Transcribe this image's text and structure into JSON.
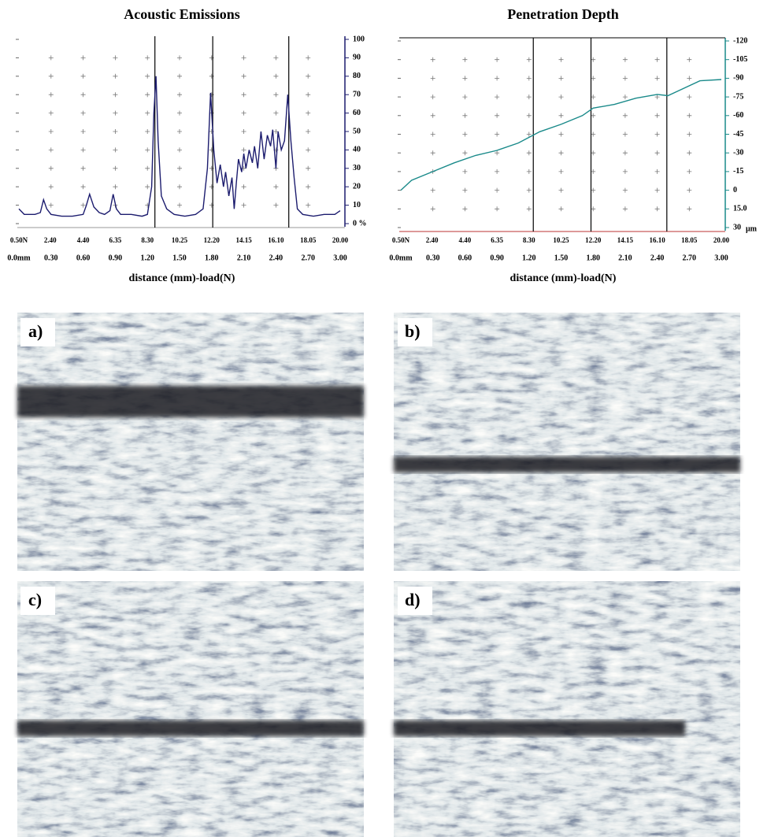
{
  "chart_data": [
    {
      "type": "line",
      "title": "Acoustic Emissions",
      "x_label": "distance (mm)-load(N)",
      "color": "#1c1c6e",
      "x": [
        0,
        0.05,
        0.15,
        0.2,
        0.23,
        0.26,
        0.3,
        0.4,
        0.5,
        0.6,
        0.63,
        0.66,
        0.7,
        0.75,
        0.8,
        0.85,
        0.88,
        0.91,
        0.95,
        1.05,
        1.15,
        1.2,
        1.24,
        1.26,
        1.28,
        1.3,
        1.33,
        1.38,
        1.45,
        1.55,
        1.65,
        1.72,
        1.76,
        1.79,
        1.82,
        1.85,
        1.88,
        1.91,
        1.93,
        1.96,
        1.99,
        2.01,
        2.03,
        2.05,
        2.08,
        2.1,
        2.12,
        2.15,
        2.18,
        2.2,
        2.23,
        2.26,
        2.29,
        2.32,
        2.35,
        2.37,
        2.4,
        2.42,
        2.45,
        2.48,
        2.51,
        2.54,
        2.57,
        2.6,
        2.65,
        2.75,
        2.85,
        2.95,
        3.0
      ],
      "values": [
        8,
        5,
        5,
        6,
        13,
        8,
        5,
        4,
        4,
        5,
        10,
        16,
        9,
        6,
        5,
        7,
        16,
        8,
        5,
        5,
        4,
        5,
        20,
        60,
        80,
        45,
        15,
        8,
        5,
        4,
        5,
        8,
        30,
        71,
        40,
        22,
        32,
        20,
        28,
        15,
        25,
        8,
        22,
        35,
        28,
        38,
        30,
        40,
        33,
        42,
        30,
        50,
        35,
        48,
        42,
        51,
        30,
        50,
        40,
        45,
        70,
        45,
        25,
        8,
        5,
        4,
        5,
        5,
        7
      ],
      "xlim": [
        0,
        3
      ],
      "ylim": [
        0,
        100
      ],
      "yticks": [
        {
          "value": 0,
          "label": "0 %"
        },
        10,
        20,
        30,
        40,
        50,
        60,
        70,
        80,
        90,
        100
      ],
      "xticks": [
        {
          "value": 0,
          "label": "0.0mm"
        },
        {
          "value": 0.3,
          "label": "0.30"
        },
        {
          "value": 0.6,
          "label": "0.60"
        },
        {
          "value": 0.9,
          "label": "0.90"
        },
        {
          "value": 1.2,
          "label": "1.20"
        },
        {
          "value": 1.5,
          "label": "1.50"
        },
        {
          "value": 1.8,
          "label": "1.80"
        },
        {
          "value": 2.1,
          "label": "2.10"
        },
        {
          "value": 2.4,
          "label": "2.40"
        },
        {
          "value": 2.7,
          "label": "2.70"
        },
        {
          "value": 3,
          "label": "3.00"
        }
      ],
      "load_lim": [
        0.5,
        20
      ],
      "load_ticks": [
        {
          "value": 0.5,
          "label": "0.50N"
        },
        {
          "value": 2.4,
          "label": "2.40"
        },
        {
          "value": 4.4,
          "label": "4.40"
        },
        {
          "value": 6.35,
          "label": "6.35"
        },
        {
          "value": 8.3,
          "label": "8.30"
        },
        {
          "value": 10.25,
          "label": "10.25"
        },
        {
          "value": 12.2,
          "label": "12.20"
        },
        {
          "value": 14.15,
          "label": "14.15"
        },
        {
          "value": 16.1,
          "label": "16.10"
        },
        {
          "value": 18.05,
          "label": "18.05"
        },
        {
          "value": 20,
          "label": "20.00"
        }
      ],
      "markers": [
        1.27,
        1.81,
        2.52
      ],
      "grid": true
    },
    {
      "type": "line",
      "title": "Penetration Depth",
      "x_label": "distance (mm)-load(N)",
      "color": "#1a8a8a",
      "y_unit": "μm",
      "x": [
        0,
        0.1,
        0.3,
        0.5,
        0.7,
        0.9,
        1.1,
        1.3,
        1.5,
        1.7,
        1.8,
        2.0,
        2.2,
        2.4,
        2.5,
        2.6,
        2.8,
        3.0
      ],
      "values": [
        0,
        -8,
        -15,
        -22,
        -28,
        -32,
        -38,
        -47,
        -53,
        -60,
        -66,
        -69,
        -74,
        -77,
        -76,
        -80,
        -88,
        -89
      ],
      "xlim": [
        0,
        3
      ],
      "ylim": [
        30,
        -120
      ],
      "yticks": [
        -120,
        -105,
        -90,
        -75,
        -60,
        -45,
        -30,
        -15,
        0,
        {
          "value": 15,
          "label": "15.0"
        },
        30
      ],
      "xticks": [
        {
          "value": 0,
          "label": "0.0mm"
        },
        {
          "value": 0.3,
          "label": "0.30"
        },
        {
          "value": 0.6,
          "label": "0.60"
        },
        {
          "value": 0.9,
          "label": "0.90"
        },
        {
          "value": 1.2,
          "label": "1.20"
        },
        {
          "value": 1.5,
          "label": "1.50"
        },
        {
          "value": 1.8,
          "label": "1.80"
        },
        {
          "value": 2.1,
          "label": "2.10"
        },
        {
          "value": 2.4,
          "label": "2.40"
        },
        {
          "value": 2.7,
          "label": "2.70"
        },
        {
          "value": 3,
          "label": "3.00"
        }
      ],
      "load_lim": [
        0.5,
        20
      ],
      "load_ticks": [
        {
          "value": 0.5,
          "label": "0.50N"
        },
        {
          "value": 2.4,
          "label": "2.40"
        },
        {
          "value": 4.4,
          "label": "4.40"
        },
        {
          "value": 6.35,
          "label": "6.35"
        },
        {
          "value": 8.3,
          "label": "8.30"
        },
        {
          "value": 10.25,
          "label": "10.25"
        },
        {
          "value": 12.2,
          "label": "12.20"
        },
        {
          "value": 14.15,
          "label": "14.15"
        },
        {
          "value": 16.1,
          "label": "16.10"
        },
        {
          "value": 18.05,
          "label": "18.05"
        },
        {
          "value": 20,
          "label": "20.00"
        }
      ],
      "markers": [
        1.24,
        1.78,
        2.49
      ],
      "grid": true
    }
  ],
  "panels": [
    {
      "label": "a)"
    },
    {
      "label": "b)"
    },
    {
      "label": "c)"
    },
    {
      "label": "d)"
    }
  ]
}
